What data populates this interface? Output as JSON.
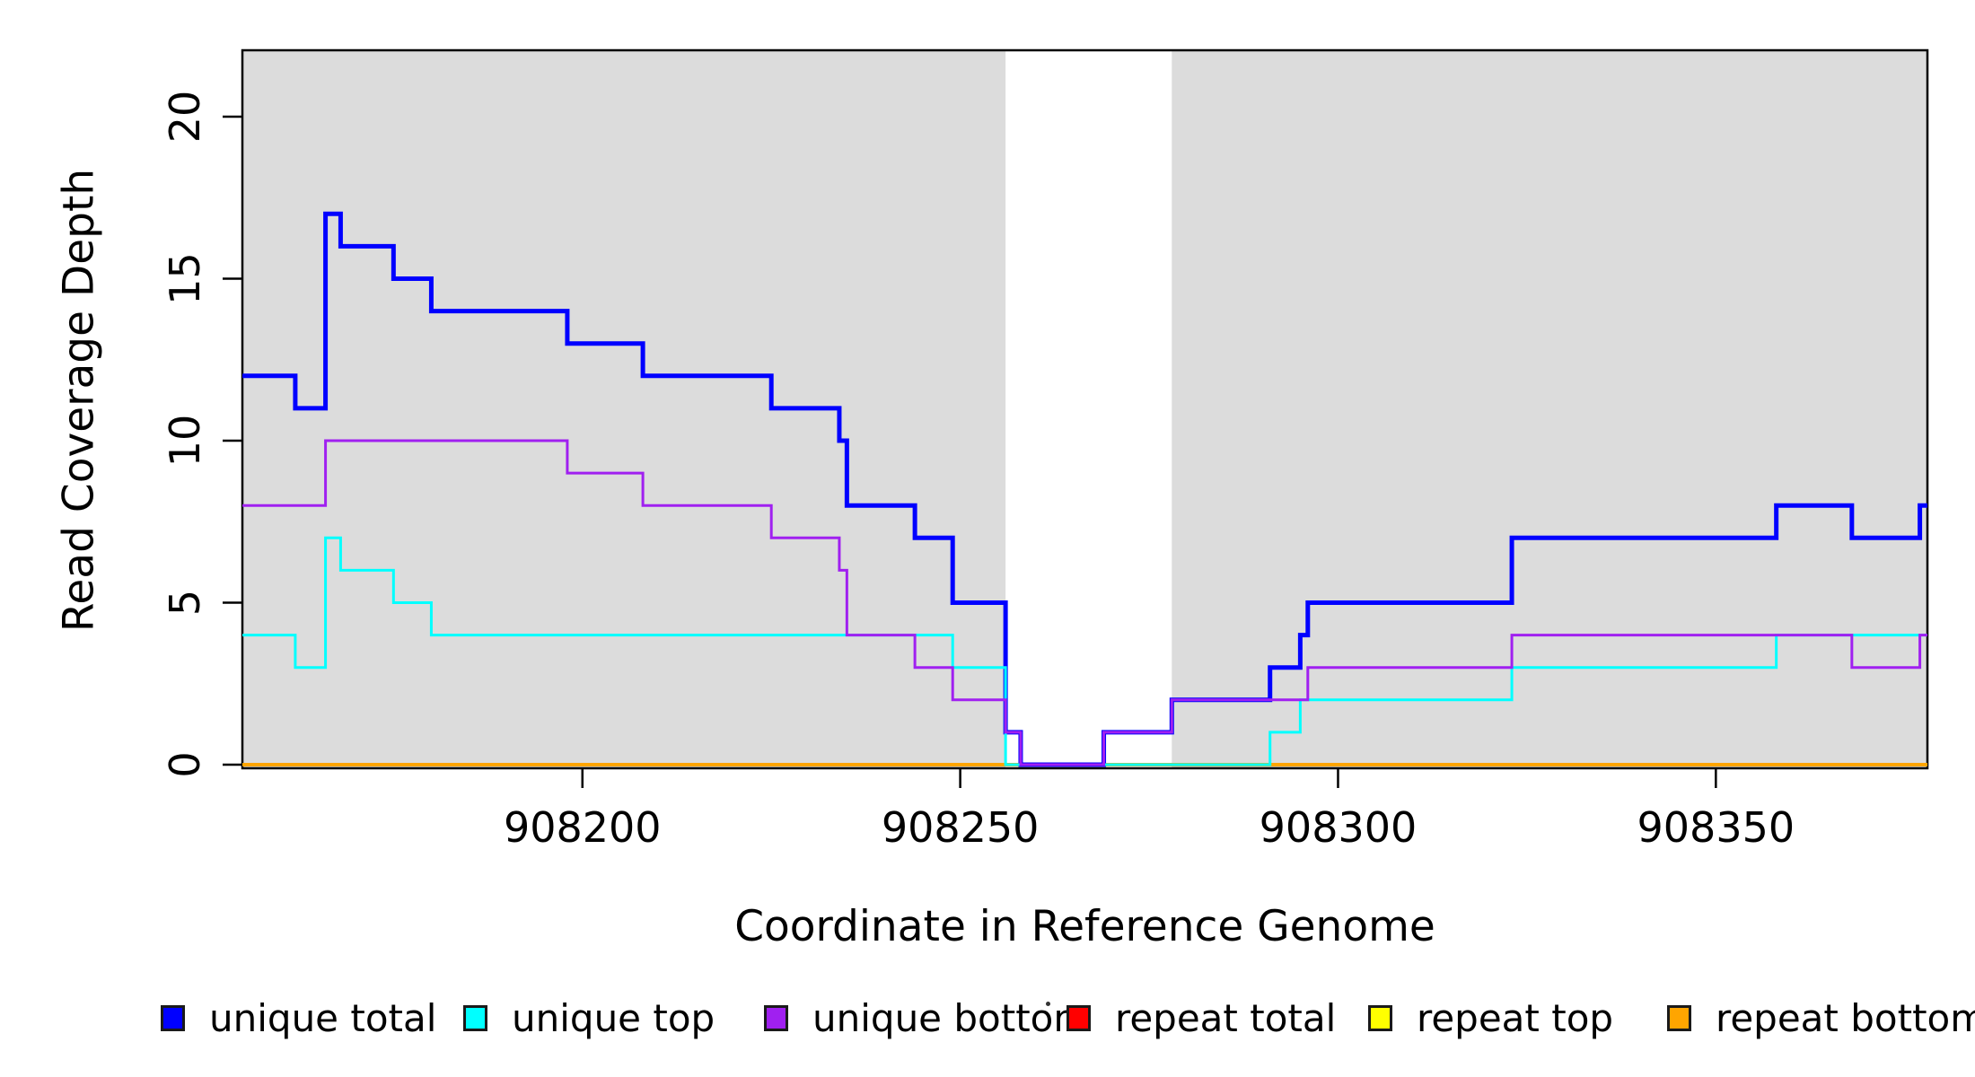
{
  "legend": {
    "items": [
      {
        "label": "unique total",
        "color": "#0000FF"
      },
      {
        "label": "unique top",
        "color": "#00FFFF"
      },
      {
        "label": "unique bottom",
        "color": "#A020F0"
      },
      {
        "label": "repeat total",
        "color": "#FF0000"
      },
      {
        "label": "repeat top",
        "color": "#FFFF00"
      },
      {
        "label": "repeat bottom",
        "color": "#FFA500"
      }
    ]
  },
  "chart_data": {
    "type": "line",
    "subtype": "step",
    "title": "",
    "xlabel": "Coordinate in Reference Genome",
    "ylabel": "Read Coverage Depth",
    "xlim": [
      908155,
      908378
    ],
    "ylim": [
      0,
      22.1
    ],
    "x_ticks": [
      908200,
      908250,
      908300,
      908350
    ],
    "y_ticks": [
      0,
      5,
      10,
      15,
      20
    ],
    "grid": false,
    "legend_position": "bottom",
    "plot_background": "#FFFFFF",
    "shading_color": "#DCDCDC",
    "shaded_regions": [
      [
        908155,
        908256
      ],
      [
        908278,
        908378
      ]
    ],
    "gap_region": [
      908256,
      908278
    ],
    "x_end": 908378,
    "draw_order": [
      "repeat total",
      "repeat top",
      "repeat bottom",
      "unique total",
      "unique top",
      "unique bottom"
    ],
    "series": [
      {
        "name": "unique total",
        "color": "#0000FF",
        "linewidth": 5,
        "steps": [
          [
            908155,
            12
          ],
          [
            908162,
            11
          ],
          [
            908166,
            17
          ],
          [
            908168,
            16
          ],
          [
            908175,
            15
          ],
          [
            908180,
            14
          ],
          [
            908198,
            13
          ],
          [
            908208,
            12
          ],
          [
            908225,
            11
          ],
          [
            908234,
            10
          ],
          [
            908235,
            8
          ],
          [
            908244,
            7
          ],
          [
            908249,
            5
          ],
          [
            908256,
            1
          ],
          [
            908258,
            0
          ],
          [
            908269,
            1
          ],
          [
            908278,
            2
          ],
          [
            908291,
            3
          ],
          [
            908295,
            4
          ],
          [
            908296,
            5
          ],
          [
            908323,
            7
          ],
          [
            908358,
            8
          ],
          [
            908368,
            7
          ],
          [
            908377,
            8
          ]
        ]
      },
      {
        "name": "unique top",
        "color": "#00FFFF",
        "linewidth": 3,
        "steps": [
          [
            908155,
            4
          ],
          [
            908162,
            3
          ],
          [
            908166,
            7
          ],
          [
            908168,
            6
          ],
          [
            908175,
            5
          ],
          [
            908180,
            4
          ],
          [
            908249,
            3
          ],
          [
            908256,
            0
          ],
          [
            908291,
            1
          ],
          [
            908295,
            2
          ],
          [
            908323,
            3
          ],
          [
            908358,
            4
          ]
        ]
      },
      {
        "name": "unique bottom",
        "color": "#A020F0",
        "linewidth": 3,
        "steps": [
          [
            908155,
            8
          ],
          [
            908166,
            10
          ],
          [
            908198,
            9
          ],
          [
            908208,
            8
          ],
          [
            908225,
            7
          ],
          [
            908234,
            6
          ],
          [
            908235,
            4
          ],
          [
            908244,
            3
          ],
          [
            908249,
            2
          ],
          [
            908256,
            1
          ],
          [
            908258,
            0
          ],
          [
            908269,
            1
          ],
          [
            908278,
            2
          ],
          [
            908296,
            3
          ],
          [
            908323,
            4
          ],
          [
            908368,
            3
          ],
          [
            908377,
            4
          ]
        ]
      },
      {
        "name": "repeat total",
        "color": "#FF0000",
        "linewidth": 3,
        "steps": [
          [
            908155,
            0
          ]
        ]
      },
      {
        "name": "repeat top",
        "color": "#FFFF00",
        "linewidth": 3,
        "steps": [
          [
            908155,
            0
          ]
        ]
      },
      {
        "name": "repeat bottom",
        "color": "#FFA500",
        "linewidth": 4,
        "steps": [
          [
            908155,
            0
          ]
        ]
      }
    ]
  }
}
